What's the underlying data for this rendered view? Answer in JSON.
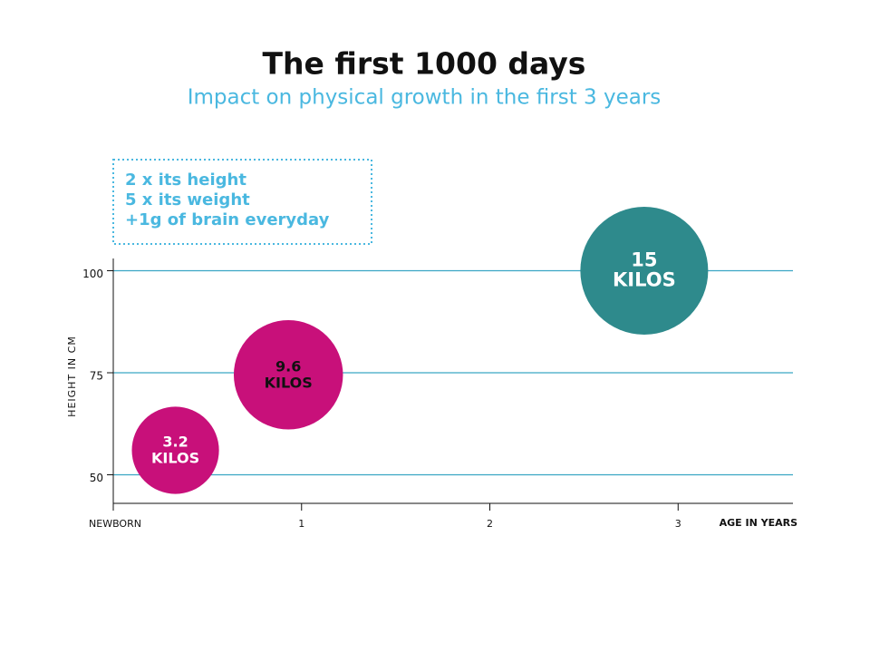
{
  "chart_data": {
    "type": "bubble",
    "title": "The first 1000 days",
    "subtitle": "Impact on physical growth in the first 3 years",
    "notes": [
      "2 x its height",
      "5 x its weight",
      "+1g of brain everyday"
    ],
    "x_label": "AGE IN YEARS",
    "y_label": "HEIGHT IN CM",
    "x": [
      0.33,
      0.93,
      2.82
    ],
    "y": [
      56,
      74.5,
      100
    ],
    "values": [
      3.2,
      9.6,
      15
    ],
    "value_labels": [
      "3.2 KILOS",
      "9.6 KILOS",
      "15 KILOS"
    ],
    "colors": [
      "#c8107a",
      "#c8107a",
      "#2e8a8c"
    ],
    "label_colors": [
      "#ffffff",
      "#111111",
      "#ffffff"
    ],
    "xlim": [
      0,
      3.61
    ],
    "xticks": [
      {
        "value": 0,
        "label": "NEWBORN"
      },
      1,
      2,
      3
    ],
    "ylim": [
      43,
      103
    ],
    "yticks": [
      50,
      75,
      100
    ],
    "grid": true,
    "grid_color": "#3aa6c4"
  }
}
